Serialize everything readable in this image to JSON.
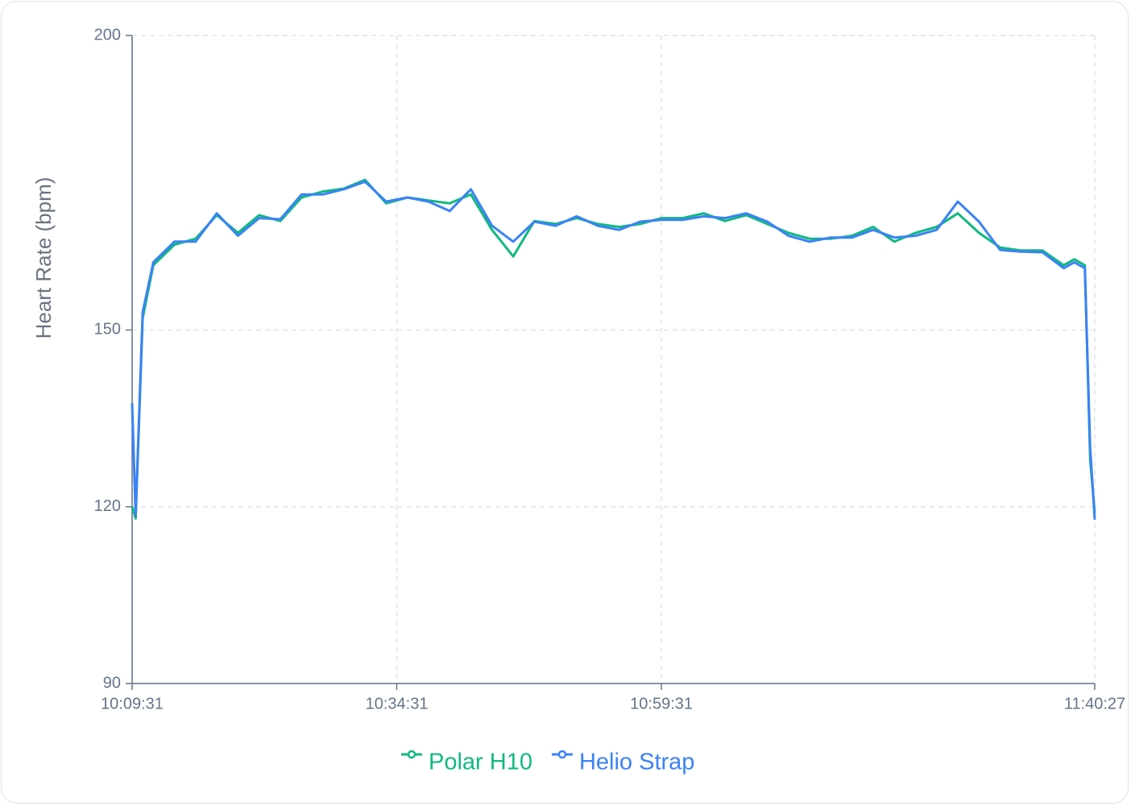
{
  "chart_data": {
    "type": "line",
    "y_label": "Heart Rate (bpm)",
    "x": [
      "10:09:31",
      "10:09:51",
      "10:10:31",
      "10:11:31",
      "10:13:31",
      "10:15:31",
      "10:17:31",
      "10:19:31",
      "10:21:31",
      "10:23:31",
      "10:25:31",
      "10:27:31",
      "10:29:31",
      "10:31:31",
      "10:33:31",
      "10:35:31",
      "10:37:31",
      "10:39:31",
      "10:41:31",
      "10:43:31",
      "10:45:31",
      "10:47:31",
      "10:49:31",
      "10:51:31",
      "10:53:31",
      "10:55:31",
      "10:57:31",
      "10:59:31",
      "11:01:31",
      "11:03:31",
      "11:05:31",
      "11:07:31",
      "11:09:31",
      "11:11:31",
      "11:13:31",
      "11:15:31",
      "11:17:31",
      "11:19:31",
      "11:21:31",
      "11:23:31",
      "11:25:31",
      "11:27:31",
      "11:29:31",
      "11:31:31",
      "11:33:31",
      "11:35:31",
      "11:37:31",
      "11:38:31",
      "11:39:31",
      "11:40:01",
      "11:40:27"
    ],
    "series": [
      {
        "name": "Polar H10",
        "color": "#10b981",
        "values": [
          120,
          118,
          152,
          161,
          164.5,
          165.5,
          169.5,
          166.5,
          169.5,
          168.5,
          172.5,
          173.5,
          174,
          175.5,
          171.5,
          172.5,
          172,
          171.5,
          173,
          167,
          162.5,
          168.5,
          168,
          169,
          168,
          167.5,
          168,
          169,
          169,
          169.8,
          168.5,
          169.5,
          168,
          166.5,
          165.5,
          165.5,
          166,
          167.5,
          165,
          166.5,
          167.5,
          169.8,
          166.5,
          164,
          163.5,
          163.5,
          161,
          162,
          161,
          128,
          119
        ]
      },
      {
        "name": "Helio Strap",
        "color": "#3b82f6",
        "values": [
          137.6,
          118.5,
          153,
          161.5,
          165,
          165,
          169.8,
          166,
          169,
          168.8,
          173,
          173,
          173.9,
          175.2,
          171.8,
          172.5,
          171.8,
          170.2,
          173.9,
          167.7,
          165,
          168.4,
          167.7,
          169.3,
          167.7,
          167,
          168.4,
          168.7,
          168.7,
          169.3,
          169,
          169.8,
          168.4,
          166,
          165,
          165.7,
          165.7,
          167,
          165.7,
          166,
          167,
          171.8,
          168.4,
          163.6,
          163.3,
          163.2,
          160.5,
          161.5,
          160.5,
          130,
          117.8
        ]
      }
    ],
    "xlim": [
      "10:09:31",
      "11:40:27"
    ],
    "xticks": [
      "10:09:31",
      "10:34:31",
      "10:59:31",
      "11:40:27"
    ],
    "ylim": [
      90,
      200
    ],
    "yticks": [
      90,
      120,
      150,
      200
    ],
    "grid": true,
    "legend": "bottom"
  }
}
